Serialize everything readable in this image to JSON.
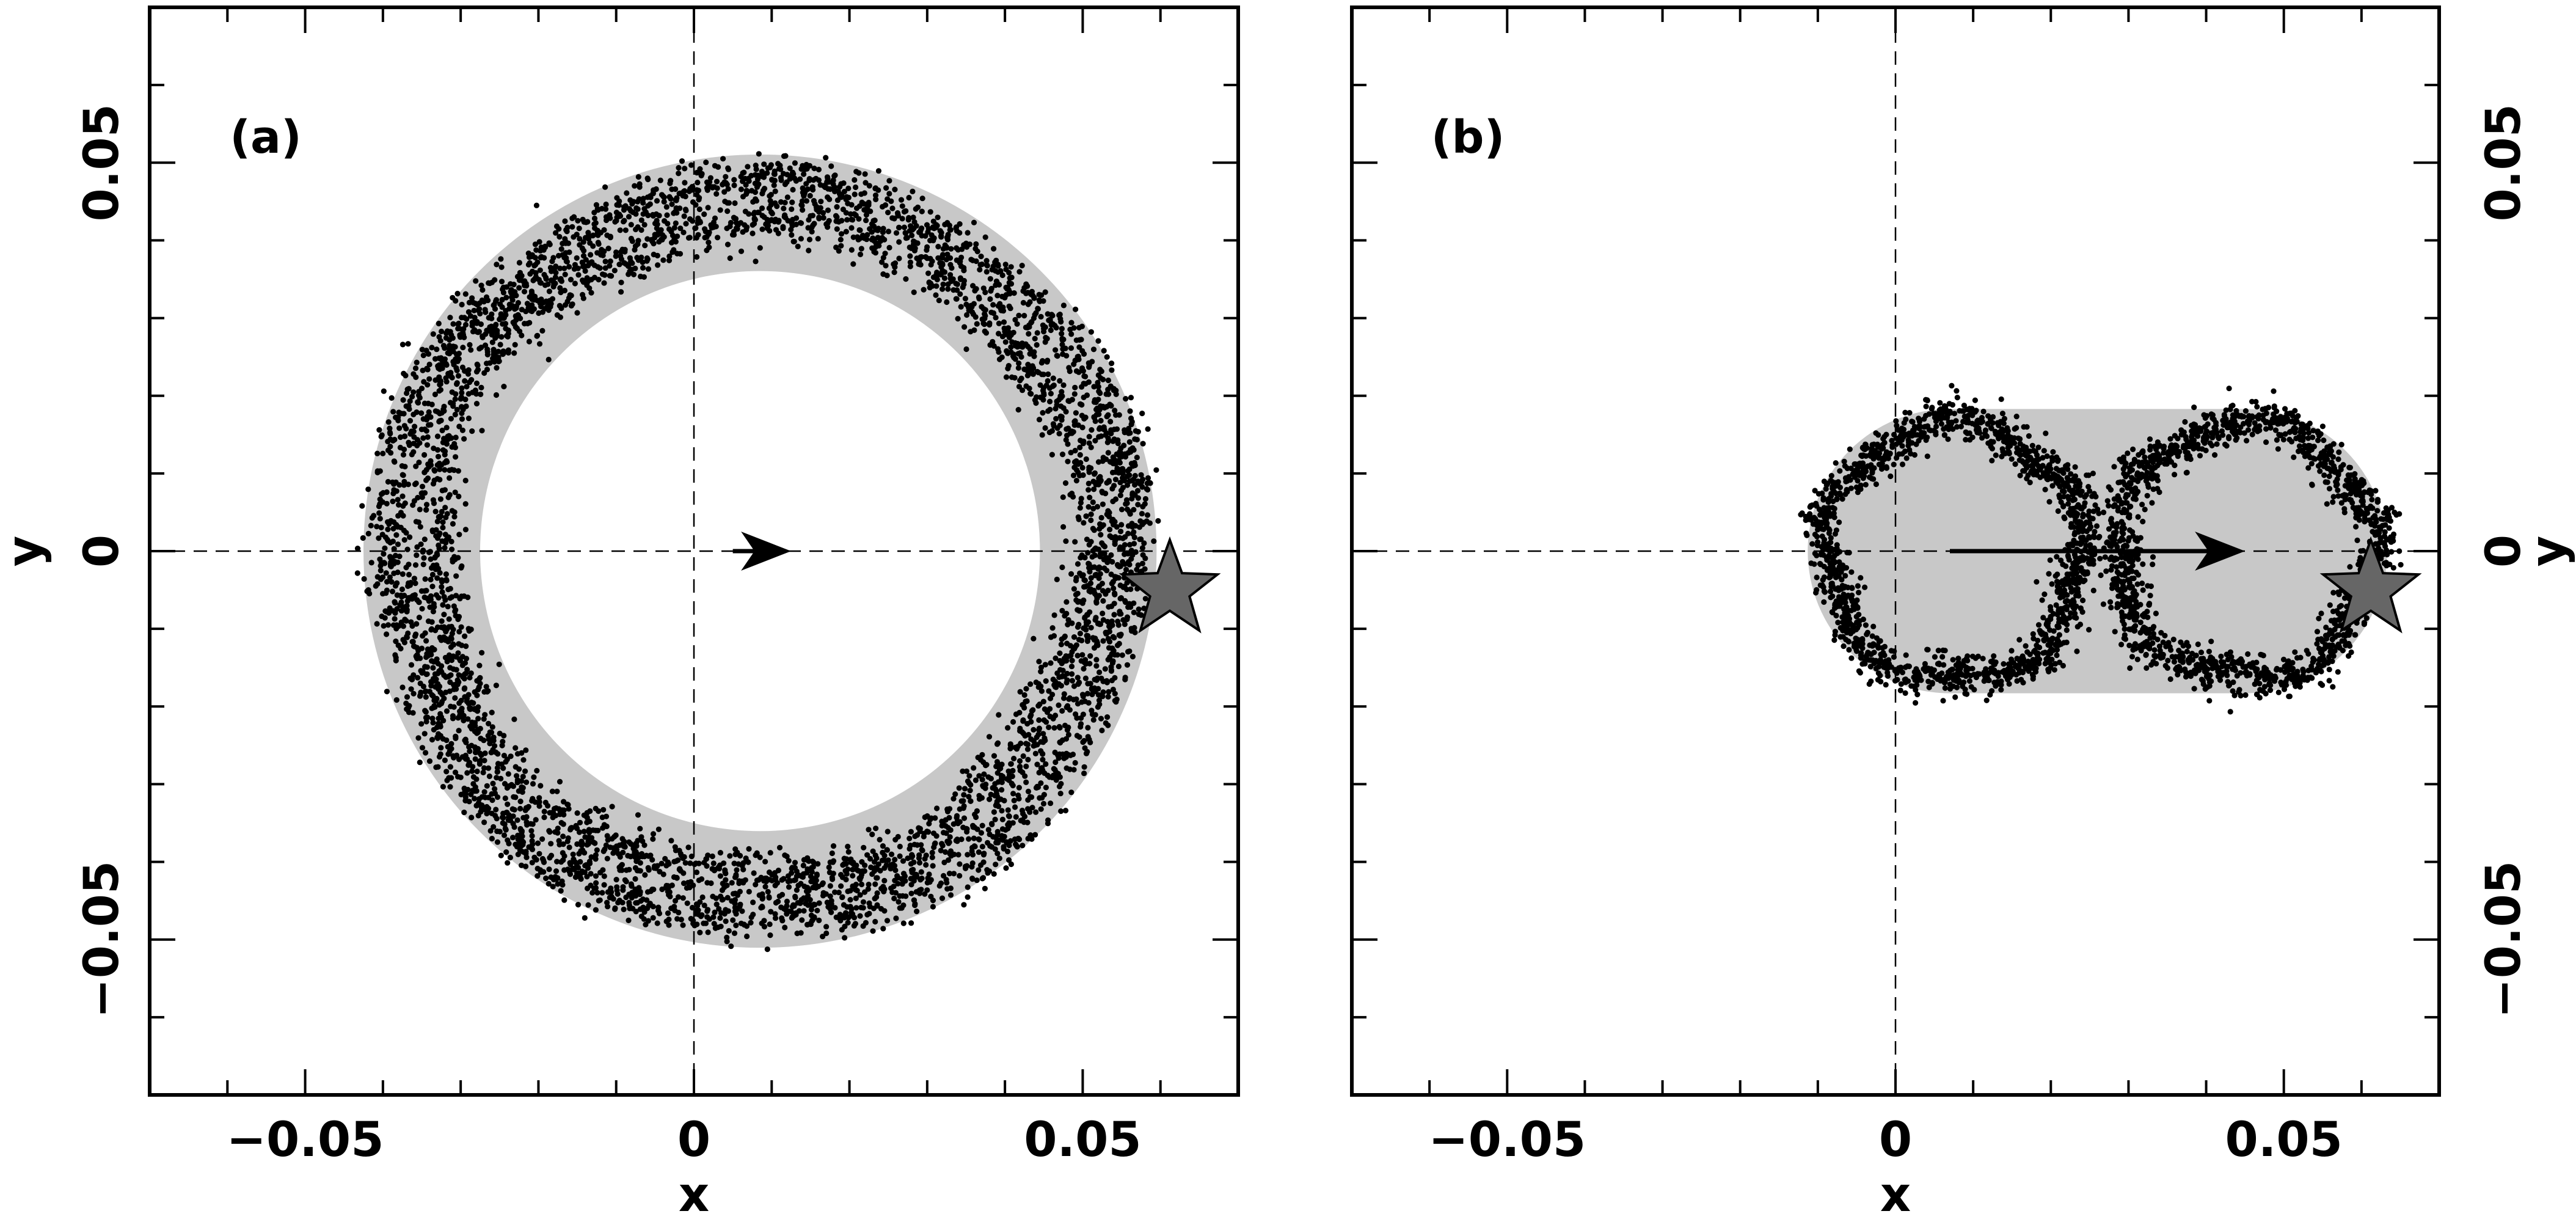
{
  "chart_data": [
    {
      "type": "scatter",
      "panel_label": "(a)",
      "xlabel": "x",
      "ylabel": "y",
      "xlim": [
        -0.07,
        0.07
      ],
      "ylim": [
        -0.07,
        0.07
      ],
      "xticks": [
        -0.05,
        0,
        0.05
      ],
      "xtick_labels": [
        "−0.05",
        "0",
        "0.05"
      ],
      "yticks": [
        -0.05,
        0,
        0.05
      ],
      "ytick_labels": [
        "−0.05",
        "0",
        "0.05"
      ],
      "ylabel_side": "left",
      "reference_lines": {
        "x": 0,
        "y": 0,
        "style": "dashed"
      },
      "regions": [
        {
          "shape": "annulus",
          "color": "#c8c8c8",
          "center": [
            0.0085,
            0.0
          ],
          "r_inner": 0.036,
          "r_outer": 0.051
        }
      ],
      "series": [
        {
          "shape": "ring",
          "color": "#000000",
          "center": [
            0.0085,
            0.0
          ],
          "radius": 0.0475,
          "spread": 0.0017,
          "points": 2600
        },
        {
          "shape": "ring",
          "color": "#000000",
          "center": [
            0.0085,
            0.0
          ],
          "radius": 0.0425,
          "spread": 0.0017,
          "points": 2300
        }
      ],
      "arrow": {
        "from": [
          0.005,
          0.0
        ],
        "to": [
          0.0125,
          0.0
        ],
        "color": "#000000"
      },
      "star": {
        "x": 0.0612,
        "y": -0.005,
        "color": "#666666"
      },
      "grid": false,
      "legend": "none"
    },
    {
      "type": "scatter",
      "panel_label": "(b)",
      "xlabel": "x",
      "ylabel": "y",
      "xlim": [
        -0.07,
        0.07
      ],
      "ylim": [
        -0.07,
        0.07
      ],
      "xticks": [
        -0.05,
        0,
        0.05
      ],
      "xtick_labels": [
        "−0.05",
        "0",
        "0.05"
      ],
      "yticks": [
        -0.05,
        0,
        0.05
      ],
      "ytick_labels": [
        "−0.05",
        "0",
        "0.05"
      ],
      "ylabel_side": "right",
      "reference_lines": {
        "x": 0,
        "y": 0,
        "style": "dashed"
      },
      "regions": [
        {
          "shape": "stadium",
          "color": "#c8c8c8",
          "x_start": 0.007,
          "x_end": 0.045,
          "radius": 0.0183
        }
      ],
      "series": [
        {
          "shape": "ring",
          "color": "#000000",
          "center": [
            0.0075,
            0.0
          ],
          "radius": 0.0165,
          "spread": 0.0013,
          "points": 1500
        },
        {
          "shape": "ring",
          "color": "#000000",
          "center": [
            0.045,
            0.0
          ],
          "radius": 0.0165,
          "spread": 0.0013,
          "points": 1500
        }
      ],
      "arrow": {
        "from": [
          0.007,
          0.0
        ],
        "to": [
          0.045,
          0.0
        ],
        "color": "#000000"
      },
      "star": {
        "x": 0.0612,
        "y": -0.005,
        "color": "#666666"
      },
      "grid": false,
      "legend": "none"
    }
  ]
}
